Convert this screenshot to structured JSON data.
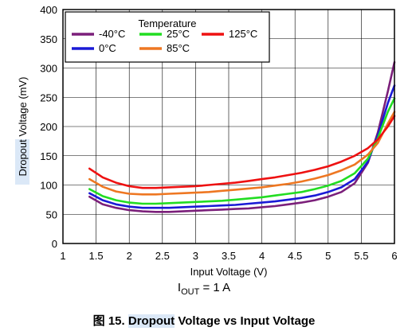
{
  "chart_data": {
    "type": "line",
    "xlabel": "Input Voltage (V)",
    "ylabel": "Dropout Voltage (mV)",
    "xlim": [
      1,
      6
    ],
    "ylim": [
      0,
      400
    ],
    "xticks": [
      "1",
      "1.5",
      "2",
      "2.5",
      "3",
      "3.5",
      "4",
      "4.5",
      "5",
      "5.5",
      "6"
    ],
    "yticks": [
      "0",
      "50",
      "100",
      "150",
      "200",
      "250",
      "300",
      "350",
      "400"
    ],
    "grid": true,
    "legend": {
      "title": "Temperature",
      "placement": "top-left",
      "entries": [
        "-40°C",
        "25°C",
        "125°C",
        "0°C",
        "85°C"
      ]
    },
    "series": [
      {
        "name": "-40°C",
        "color": "#7b1f7a",
        "x": [
          1.4,
          1.6,
          1.8,
          2.0,
          2.2,
          2.4,
          2.6,
          2.8,
          3.0,
          3.2,
          3.4,
          3.6,
          3.8,
          4.0,
          4.2,
          4.4,
          4.6,
          4.8,
          5.0,
          5.2,
          5.4,
          5.6,
          5.75,
          5.9,
          6.0
        ],
        "y": [
          80,
          67,
          61,
          57,
          55,
          54,
          54,
          55,
          56,
          57,
          58,
          59,
          60,
          62,
          64,
          67,
          70,
          74,
          80,
          88,
          103,
          138,
          190,
          260,
          310
        ]
      },
      {
        "name": "0°C",
        "color": "#1a1ad6",
        "x": [
          1.4,
          1.6,
          1.8,
          2.0,
          2.2,
          2.4,
          2.6,
          2.8,
          3.0,
          3.2,
          3.4,
          3.6,
          3.8,
          4.0,
          4.2,
          4.4,
          4.6,
          4.8,
          5.0,
          5.2,
          5.4,
          5.6,
          5.75,
          5.9,
          6.0
        ],
        "y": [
          86,
          74,
          67,
          63,
          61,
          61,
          61,
          62,
          63,
          64,
          65,
          66,
          68,
          70,
          72,
          75,
          78,
          82,
          88,
          96,
          110,
          140,
          185,
          240,
          270
        ]
      },
      {
        "name": "25°C",
        "color": "#22dd22",
        "x": [
          1.4,
          1.6,
          1.8,
          2.0,
          2.2,
          2.4,
          2.6,
          2.8,
          3.0,
          3.2,
          3.4,
          3.6,
          3.8,
          4.0,
          4.2,
          4.4,
          4.6,
          4.8,
          5.0,
          5.2,
          5.4,
          5.6,
          5.75,
          5.9,
          6.0
        ],
        "y": [
          93,
          81,
          74,
          70,
          68,
          68,
          69,
          70,
          71,
          72,
          73,
          75,
          77,
          79,
          82,
          85,
          88,
          93,
          99,
          107,
          120,
          145,
          180,
          225,
          248
        ]
      },
      {
        "name": "85°C",
        "color": "#ee7722",
        "x": [
          1.4,
          1.6,
          1.8,
          2.0,
          2.2,
          2.4,
          2.6,
          2.8,
          3.0,
          3.2,
          3.4,
          3.6,
          3.8,
          4.0,
          4.2,
          4.4,
          4.6,
          4.8,
          5.0,
          5.2,
          5.4,
          5.6,
          5.75,
          5.9,
          6.0
        ],
        "y": [
          110,
          97,
          89,
          85,
          84,
          84,
          85,
          86,
          87,
          88,
          90,
          92,
          94,
          96,
          99,
          102,
          106,
          111,
          117,
          125,
          135,
          152,
          172,
          205,
          225
        ]
      },
      {
        "name": "125°C",
        "color": "#ee1111",
        "x": [
          1.4,
          1.6,
          1.8,
          2.0,
          2.2,
          2.4,
          2.6,
          2.8,
          3.0,
          3.2,
          3.4,
          3.6,
          3.8,
          4.0,
          4.2,
          4.4,
          4.6,
          4.8,
          5.0,
          5.2,
          5.4,
          5.6,
          5.75,
          5.9,
          6.0
        ],
        "y": [
          128,
          113,
          104,
          98,
          95,
          95,
          96,
          97,
          98,
          100,
          102,
          104,
          107,
          110,
          113,
          117,
          121,
          126,
          132,
          140,
          150,
          163,
          178,
          200,
          218
        ]
      }
    ]
  },
  "condition": {
    "prefix": "I",
    "subscript": "OUT",
    "suffix": " = 1 A"
  },
  "caption": {
    "figure": "图 15. ",
    "highlight": "Dropout",
    "rest": " Voltage vs Input Voltage"
  }
}
